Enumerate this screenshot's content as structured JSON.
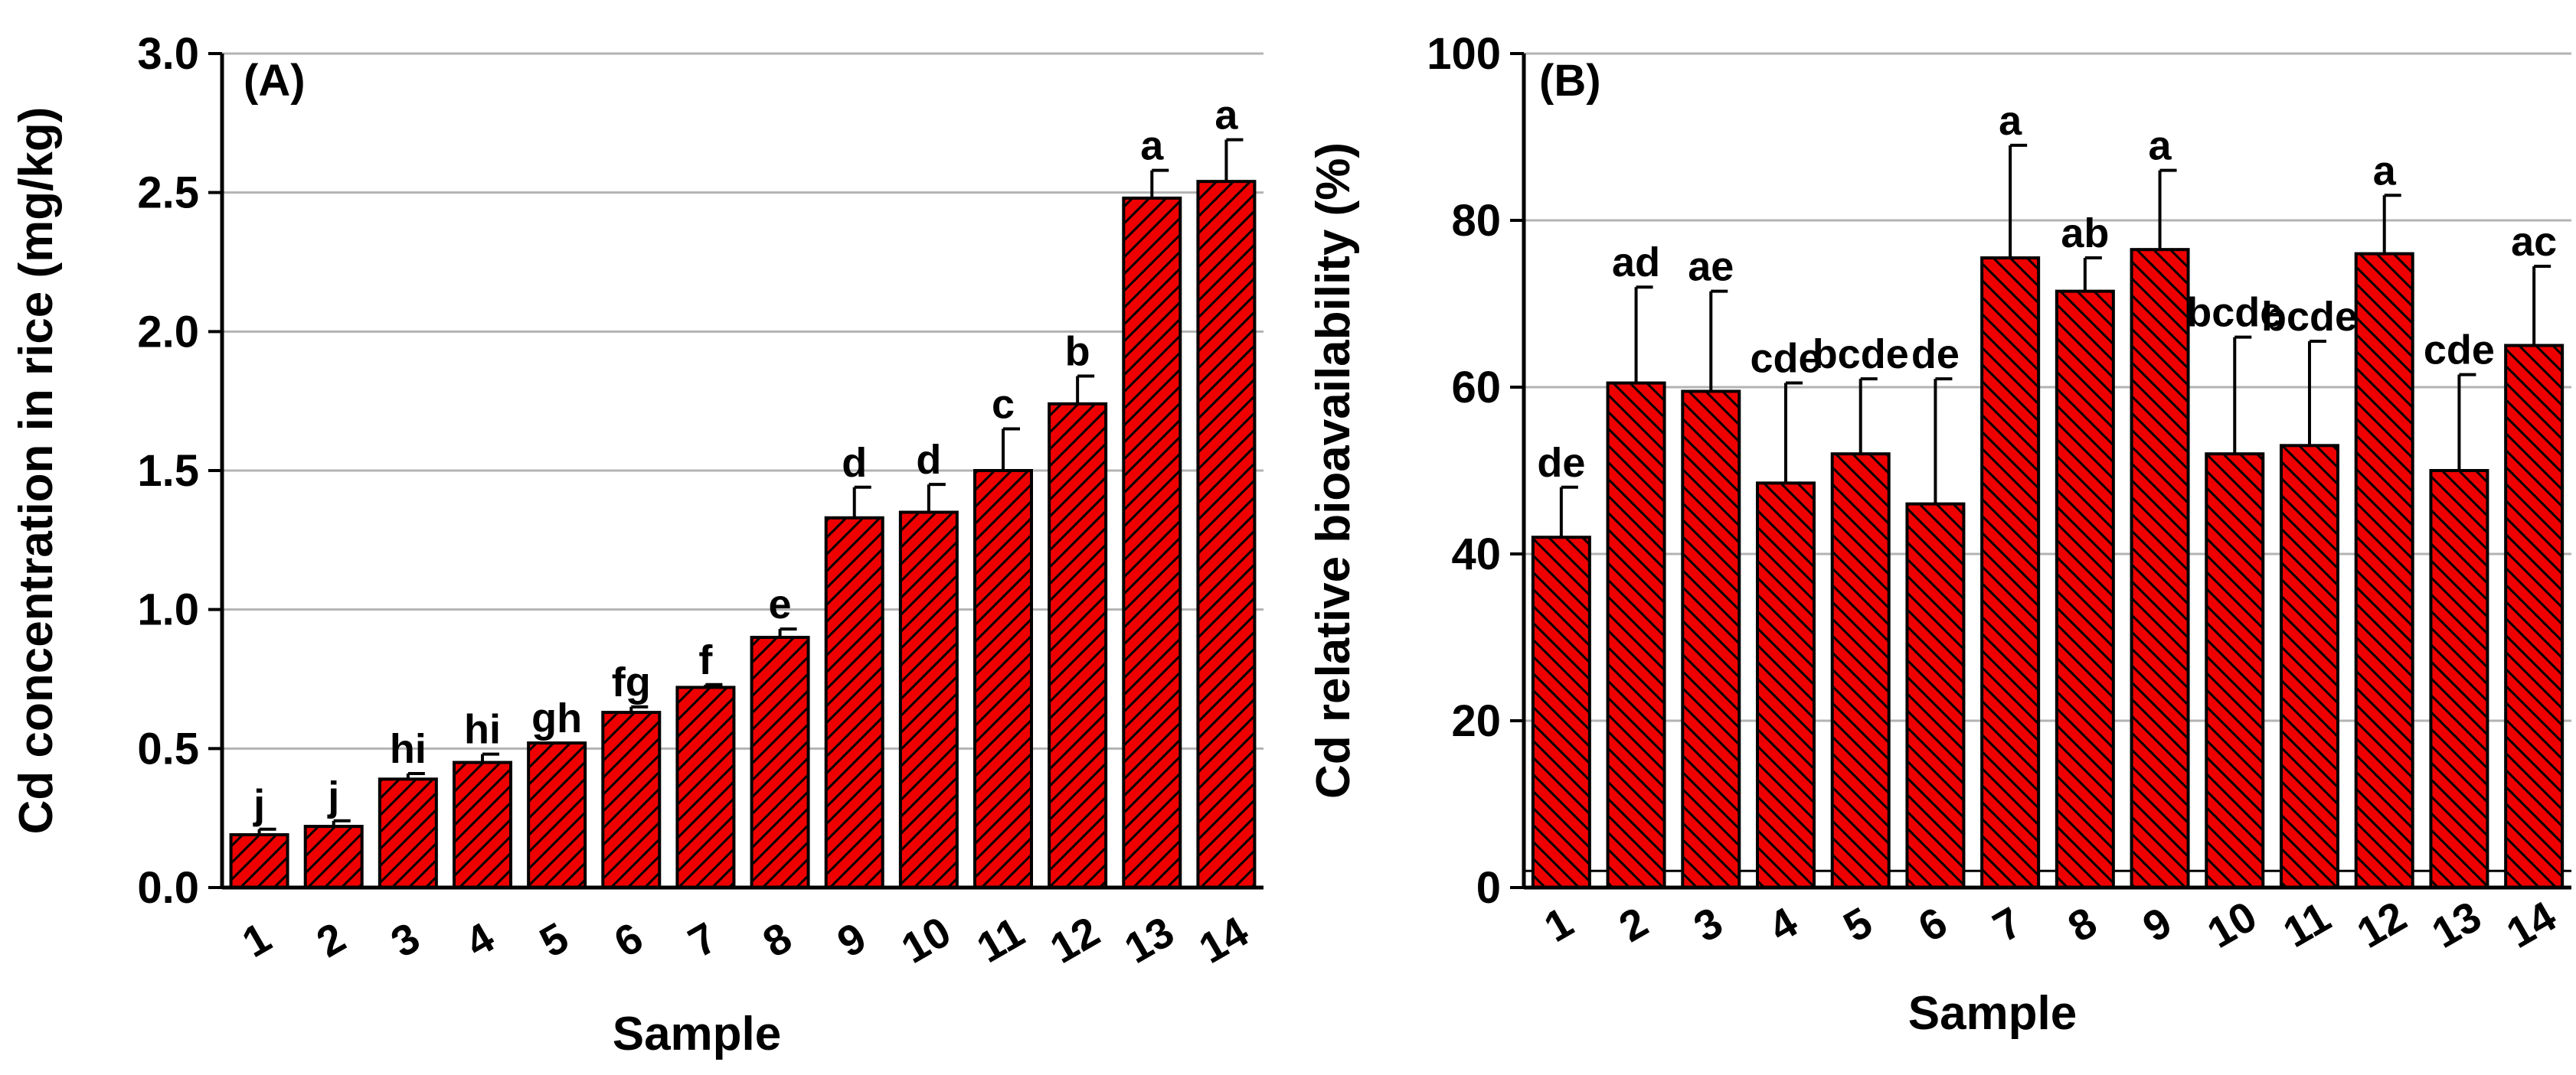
{
  "colors": {
    "bar_fill": "#ee0000",
    "bar_edge": "#000000",
    "grid": "#b3b3b3",
    "hatch": "#000000"
  },
  "chart_data": [
    {
      "type": "bar",
      "panel_label": "(A)",
      "xlabel": "Sample",
      "ylabel": "Cd concentration in rice (mg/kg)",
      "ylim": [
        0,
        3.0
      ],
      "yticks": [
        0,
        0.5,
        1.0,
        1.5,
        2.0,
        2.5,
        3.0
      ],
      "ytick_labels": [
        "0.0",
        "0.5",
        "1.0",
        "1.5",
        "2.0",
        "2.5",
        "3.0"
      ],
      "grid": true,
      "hatch": "forward",
      "categories": [
        "1",
        "2",
        "3",
        "4",
        "5",
        "6",
        "7",
        "8",
        "9",
        "10",
        "11",
        "12",
        "13",
        "14"
      ],
      "values": [
        0.19,
        0.22,
        0.39,
        0.45,
        0.52,
        0.63,
        0.72,
        0.9,
        1.33,
        1.35,
        1.5,
        1.74,
        2.48,
        2.54
      ],
      "errors": [
        0.02,
        0.02,
        0.02,
        0.03,
        0.0,
        0.02,
        0.01,
        0.03,
        0.11,
        0.1,
        0.15,
        0.1,
        0.1,
        0.15
      ],
      "significance": [
        "j",
        "j",
        "hi",
        "hi",
        "gh",
        "fg",
        "f",
        "e",
        "d",
        "d",
        "c",
        "b",
        "a",
        "a"
      ]
    },
    {
      "type": "bar",
      "panel_label": "(B)",
      "xlabel": "Sample",
      "ylabel": "Cd relative bioavailability (%)",
      "ylim": [
        0,
        100
      ],
      "yticks": [
        0,
        20,
        40,
        60,
        80,
        100
      ],
      "ytick_labels": [
        "0",
        "20",
        "40",
        "60",
        "80",
        "100"
      ],
      "grid": true,
      "hatch": "backward",
      "categories": [
        "1",
        "2",
        "3",
        "4",
        "5",
        "6",
        "7",
        "8",
        "9",
        "10",
        "11",
        "12",
        "13",
        "14"
      ],
      "values": [
        42,
        60.5,
        59.5,
        48.5,
        52,
        46,
        75.5,
        71.5,
        76.5,
        52,
        53,
        76,
        50,
        65
      ],
      "errors": [
        6,
        11.5,
        12,
        12,
        9,
        15,
        13.5,
        4,
        9.5,
        14,
        12.5,
        7,
        11.5,
        9.5
      ],
      "significance": [
        "de",
        "ad",
        "ae",
        "cde",
        "bcde",
        "de",
        "a",
        "ab",
        "a",
        "bcde",
        "bcde",
        "a",
        "cde",
        "ac"
      ]
    }
  ]
}
